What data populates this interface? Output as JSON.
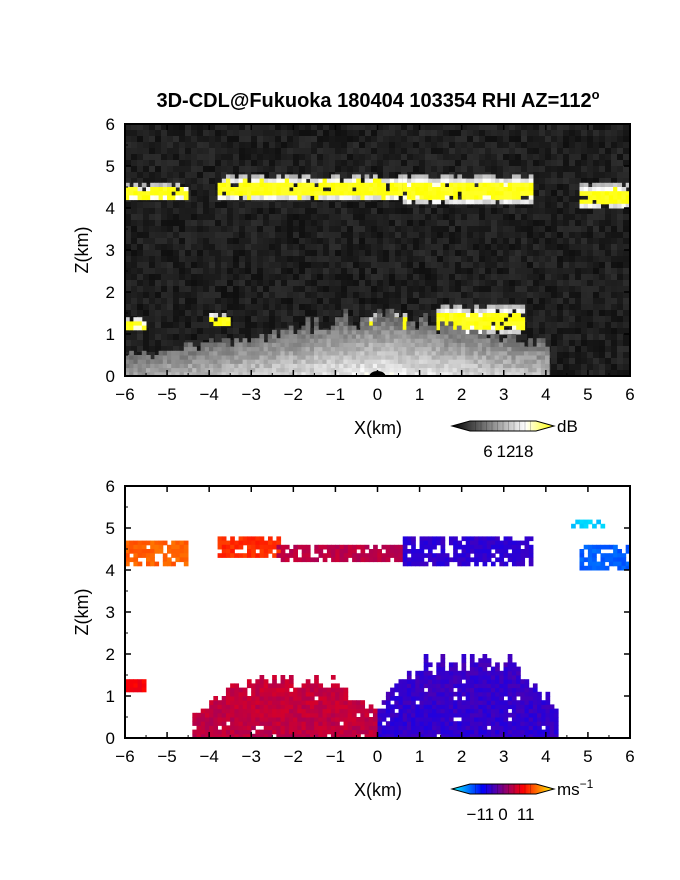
{
  "figure": {
    "title": "3D-CDL@Fukuoka 180404 103354 RHI AZ=112",
    "title_superscript": "o"
  },
  "chart_data": [
    {
      "type": "heatmap",
      "field": "reflectivity",
      "xlabel": "X(km)",
      "ylabel": "Z(km)",
      "xlim": [
        -6,
        6
      ],
      "ylim": [
        0,
        6
      ],
      "xticks": [
        "−6",
        "−5",
        "−4",
        "−3",
        "−2",
        "−1",
        "0",
        "1",
        "2",
        "3",
        "4",
        "5",
        "6"
      ],
      "yticks": [
        "0",
        "1",
        "2",
        "3",
        "4",
        "5",
        "6"
      ],
      "colorbar": {
        "unit": "dB",
        "tick_labels": [
          "6",
          "12",
          "18"
        ],
        "ticks": [
          6,
          12,
          18
        ],
        "range": [
          0,
          22
        ],
        "colors": [
          "#000000",
          "#ffffff",
          "#ffff00"
        ]
      },
      "features": [
        {
          "kind": "layer",
          "x": [
            -6.0,
            -4.6
          ],
          "z": [
            4.2,
            4.6
          ],
          "peak_db": 20
        },
        {
          "kind": "layer",
          "x": [
            -3.8,
            0.5
          ],
          "z": [
            4.2,
            4.8
          ],
          "peak_db": 20
        },
        {
          "kind": "layer",
          "x": [
            0.6,
            3.6
          ],
          "z": [
            4.1,
            4.8
          ],
          "peak_db": 20
        },
        {
          "kind": "layer",
          "x": [
            4.8,
            6.0
          ],
          "z": [
            4.0,
            4.6
          ],
          "peak_db": 20
        },
        {
          "kind": "patch",
          "x": [
            -6.0,
            -5.6
          ],
          "z": [
            1.1,
            1.4
          ],
          "peak_db": 20
        },
        {
          "kind": "patch",
          "x": [
            -4.0,
            -3.6
          ],
          "z": [
            1.2,
            1.5
          ],
          "peak_db": 20
        },
        {
          "kind": "patch",
          "x": [
            -0.2,
            0.6
          ],
          "z": [
            0.9,
            1.5
          ],
          "peak_db": 20
        },
        {
          "kind": "patch",
          "x": [
            1.4,
            3.4
          ],
          "z": [
            1.0,
            1.7
          ],
          "peak_db": 20
        },
        {
          "kind": "boundary_layer",
          "x": [
            -6.0,
            4.0
          ],
          "z": [
            0.0,
            1.8
          ],
          "peak_db": 14
        }
      ]
    },
    {
      "type": "heatmap",
      "field": "radial_velocity",
      "xlabel": "X(km)",
      "ylabel": "Z(km)",
      "xlim": [
        -6,
        6
      ],
      "ylim": [
        0,
        6
      ],
      "xticks": [
        "−6",
        "−5",
        "−4",
        "−3",
        "−2",
        "−1",
        "0",
        "1",
        "2",
        "3",
        "4",
        "5",
        "6"
      ],
      "yticks": [
        "0",
        "1",
        "2",
        "3",
        "4",
        "5",
        "6"
      ],
      "colorbar": {
        "unit": "ms",
        "unit_superscript": "−1",
        "tick_labels": [
          "−11",
          "0",
          "11"
        ],
        "ticks": [
          -11,
          0,
          11
        ],
        "range": [
          -16,
          16
        ],
        "colors": [
          "#00ffff",
          "#0000ff",
          "#ff0000",
          "#ffff00"
        ]
      },
      "features": [
        {
          "kind": "layer",
          "x": [
            -6.0,
            -4.6
          ],
          "z": [
            4.1,
            4.7
          ],
          "velocity": 10
        },
        {
          "kind": "layer",
          "x": [
            -3.8,
            -2.4
          ],
          "z": [
            4.3,
            4.8
          ],
          "velocity": 8
        },
        {
          "kind": "layer",
          "x": [
            -2.4,
            0.5
          ],
          "z": [
            4.2,
            4.6
          ],
          "velocity": 3
        },
        {
          "kind": "layer",
          "x": [
            0.6,
            3.6
          ],
          "z": [
            4.1,
            4.8
          ],
          "velocity": -4
        },
        {
          "kind": "layer",
          "x": [
            4.8,
            6.0
          ],
          "z": [
            4.0,
            4.6
          ],
          "velocity": -10
        },
        {
          "kind": "patch",
          "x": [
            4.6,
            5.3
          ],
          "z": [
            5.0,
            5.2
          ],
          "velocity": -14
        },
        {
          "kind": "patch",
          "x": [
            -6.0,
            -5.6
          ],
          "z": [
            1.1,
            1.4
          ],
          "velocity": 6
        },
        {
          "kind": "boundary_layer",
          "x": [
            -4.4,
            0.0
          ],
          "z": [
            0.0,
            1.6
          ],
          "velocity": 3
        },
        {
          "kind": "boundary_layer",
          "x": [
            0.0,
            4.2
          ],
          "z": [
            0.0,
            2.1
          ],
          "velocity": -4
        }
      ]
    }
  ]
}
